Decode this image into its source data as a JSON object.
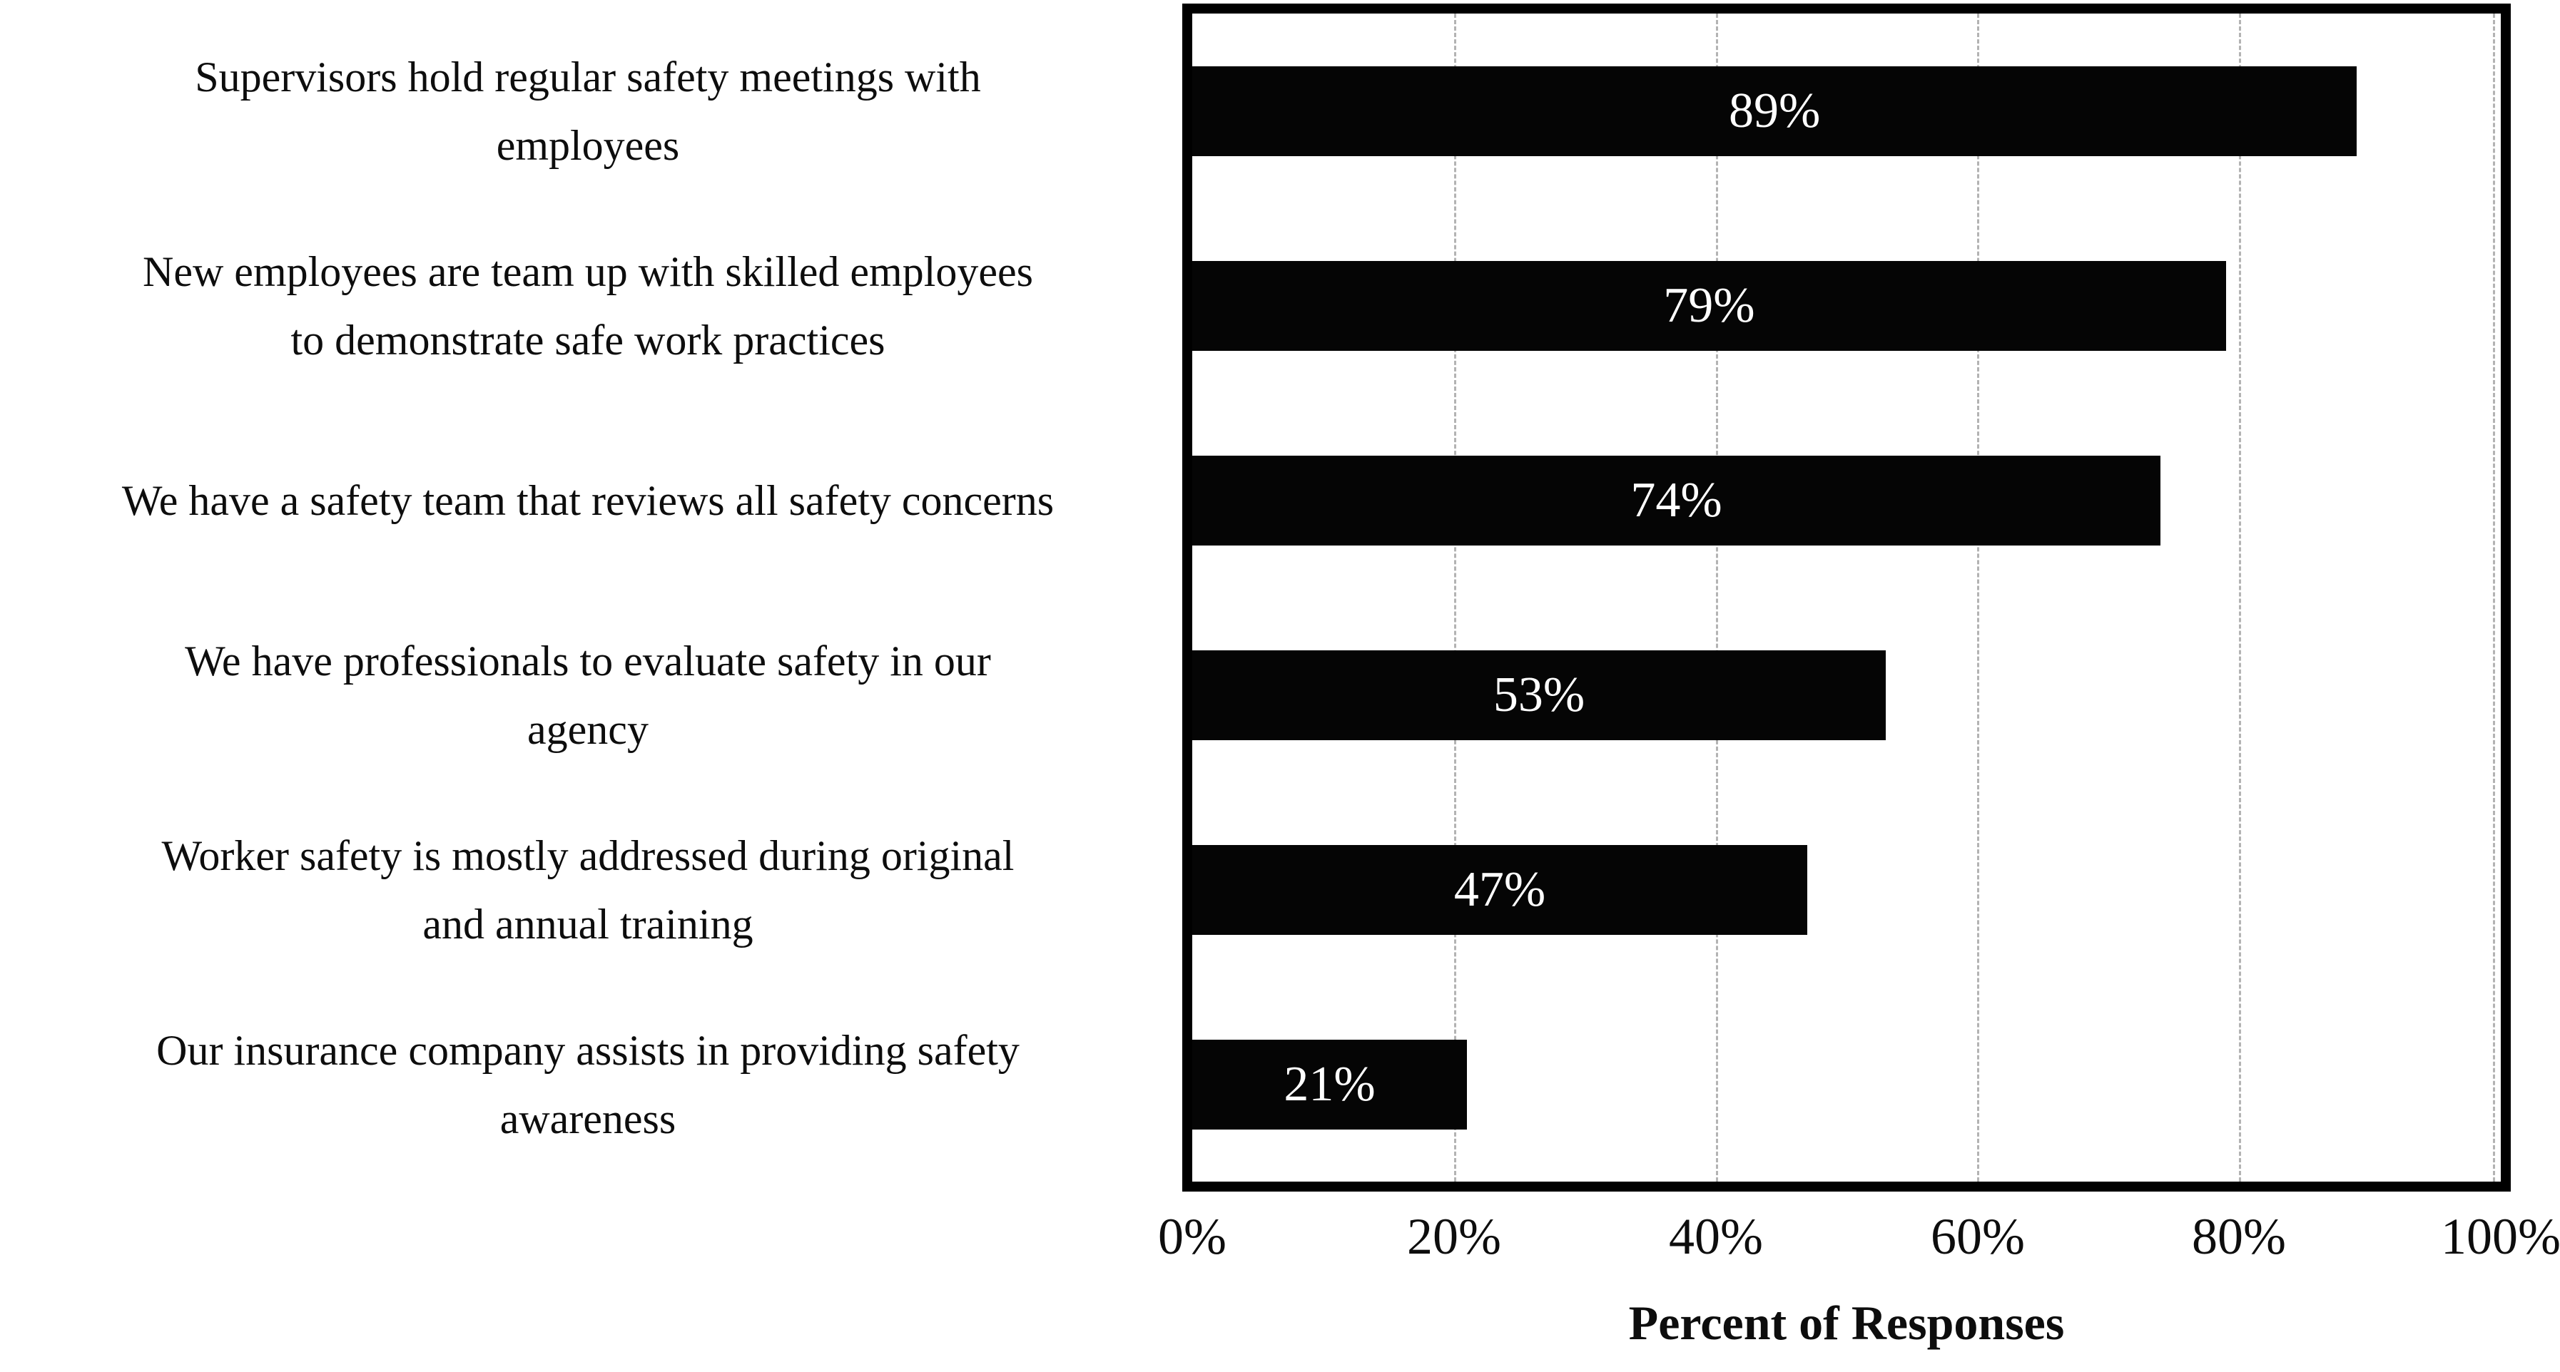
{
  "chart_data": {
    "type": "bar",
    "orientation": "horizontal",
    "title": "",
    "xlabel": "Percent of Responses",
    "ylabel": "",
    "xlim": [
      0,
      100
    ],
    "x_ticks": [
      "0%",
      "20%",
      "40%",
      "60%",
      "80%",
      "100%"
    ],
    "grid": "vertical dashed gridlines every 20%",
    "legend": "none",
    "categories": [
      "Supervisors hold regular safety meetings with employees",
      "New employees are team up with skilled employees to demonstrate safe work practices",
      "We have a safety team that reviews all safety concerns",
      "We have professionals to evaluate safety in our agency",
      "Worker safety is mostly addressed during original and annual training",
      "Our insurance company assists in providing safety awareness"
    ],
    "categories_wrapped": [
      "Supervisors hold regular safety meetings with\nemployees",
      "New employees are team up with skilled employees\nto demonstrate safe work practices",
      "We have a safety team that reviews all safety concerns",
      "We have professionals to evaluate safety in our\nagency",
      "Worker safety is mostly addressed during original\nand annual training",
      "Our insurance company assists in providing safety\nawareness"
    ],
    "values": [
      89,
      79,
      74,
      53,
      47,
      21
    ],
    "data_labels": [
      "89%",
      "79%",
      "74%",
      "53%",
      "47%",
      "21%"
    ],
    "data_label_position": "inside-center",
    "colors": {
      "bar": "#050505",
      "bar_label": "#ffffff",
      "gridline": "#b3b3b3",
      "plot_border": "#000000",
      "text": "#0d0d0d",
      "background": "#ffffff"
    }
  }
}
